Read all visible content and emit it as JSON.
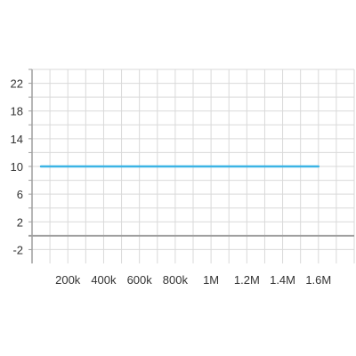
{
  "chart_data": {
    "type": "line",
    "title": "",
    "xlabel": "",
    "ylabel": "",
    "x_ticks": [
      {
        "value": 200000,
        "label": "200k"
      },
      {
        "value": 400000,
        "label": "400k"
      },
      {
        "value": 600000,
        "label": "600k"
      },
      {
        "value": 800000,
        "label": "800k"
      },
      {
        "value": 1000000,
        "label": "1M"
      },
      {
        "value": 1200000,
        "label": "1.2M"
      },
      {
        "value": 1400000,
        "label": "1.4M"
      },
      {
        "value": 1600000,
        "label": "1.6M"
      }
    ],
    "y_ticks": [
      {
        "value": 22,
        "label": "22"
      },
      {
        "value": 18,
        "label": "18"
      },
      {
        "value": 14,
        "label": "14"
      },
      {
        "value": 10,
        "label": "10"
      },
      {
        "value": 6,
        "label": "6"
      },
      {
        "value": 2,
        "label": "2"
      },
      {
        "value": -2,
        "label": "-2"
      }
    ],
    "xlim": [
      0,
      1800000
    ],
    "ylim": [
      -4,
      24
    ],
    "grid": true,
    "legend": "none",
    "series": [
      {
        "x": [
          50000,
          1600000
        ],
        "y": [
          10,
          10
        ],
        "color": "#3cb4e5"
      }
    ],
    "colors": {
      "grid": "#d9d9d9",
      "axis": "#9e9e9e",
      "zero_line": "#9e9e9e",
      "series": "#3cb4e5"
    }
  }
}
